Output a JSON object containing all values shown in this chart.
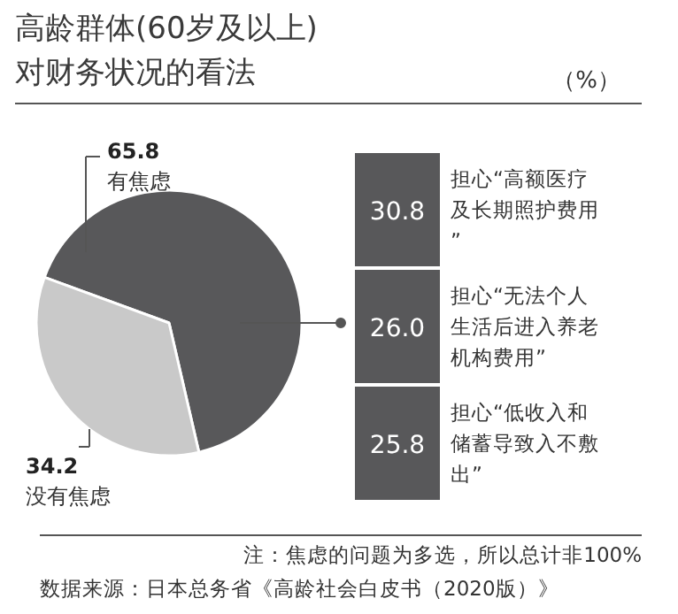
{
  "chart_data": [
    {
      "type": "pie",
      "title": "高龄群体(60岁及以上)\n对财务状况的看法",
      "subtitle": "（%）",
      "categories": [
        "有焦虑",
        "没有焦虑"
      ],
      "values": [
        65.8,
        34.2
      ],
      "colors": [
        "#58585a",
        "#c9c9c9"
      ],
      "data_labels": true
    },
    {
      "type": "other",
      "categories": [
        "担心“高额医疗及长期照护费用”",
        "担心“无法个人生活后进入养老机构费用”",
        "担心“低收入和储蓄导致入不敷出”"
      ],
      "values": [
        30.8,
        26.0,
        25.8
      ],
      "value_labels": [
        "30.8",
        "26.0",
        "25.8"
      ],
      "color": "#58585a",
      "annotations": [
        "注：焦虑的问题为多选，所以总计非100%",
        "数据来源：日本总务省《高龄社会白皮书（2020版）》"
      ]
    }
  ]
}
